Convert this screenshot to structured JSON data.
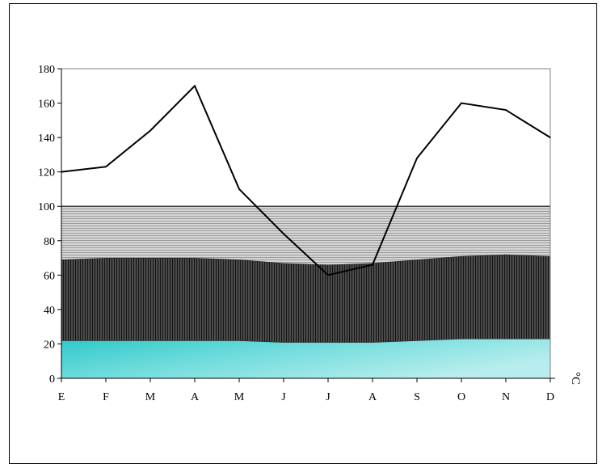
{
  "chart_data": {
    "type": "area",
    "categories": [
      "E",
      "F",
      "M",
      "A",
      "M",
      "J",
      "J",
      "A",
      "S",
      "O",
      "N",
      "D"
    ],
    "ylim": [
      0,
      180
    ],
    "yticks": [
      "0",
      "20",
      "40",
      "60",
      "80",
      "100",
      "120",
      "140",
      "160",
      "180"
    ],
    "ylabel": "",
    "xlabel": "",
    "unit_label": "°C",
    "grid": false,
    "legend": "none",
    "series": [
      {
        "type": "area",
        "values": [
          22,
          22,
          22,
          22,
          22,
          21,
          21,
          21,
          22,
          23,
          23,
          23
        ],
        "color": "#49d2d2"
      },
      {
        "type": "area",
        "values": [
          69,
          70,
          70,
          70,
          69,
          67,
          66,
          67,
          69,
          71,
          72,
          71
        ],
        "color": "#3a3a3a"
      },
      {
        "type": "area",
        "values": [
          100,
          100,
          100,
          100,
          100,
          100,
          100,
          100,
          100,
          100,
          100,
          100
        ],
        "color": "#c8c8c8"
      },
      {
        "type": "line",
        "values": [
          120,
          123,
          144,
          170,
          110,
          84,
          60,
          66,
          128,
          160,
          156,
          140
        ],
        "color": "#000000"
      }
    ]
  }
}
